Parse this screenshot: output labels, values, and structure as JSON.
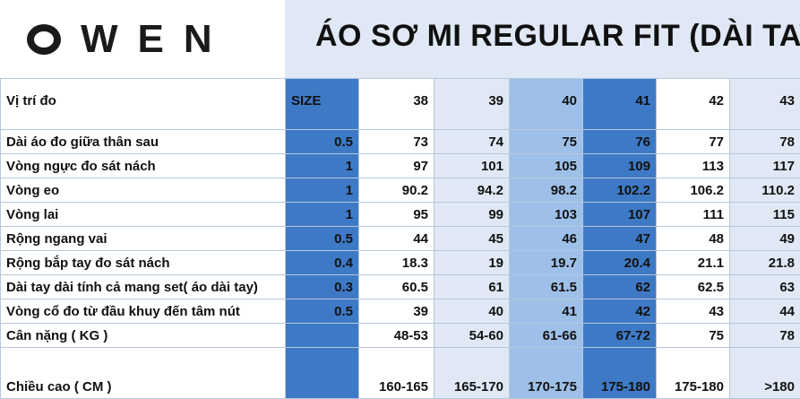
{
  "brand": "OWEN",
  "brand_rest": "WEN",
  "title": "ÁO SƠ MI REGULAR FIT (DÀI TAY)",
  "header_row": {
    "label": "Vị trí đo",
    "size_label": "SIZE",
    "sizes": [
      "38",
      "39",
      "40",
      "41",
      "42",
      "43"
    ]
  },
  "rows": [
    {
      "label": "Dài áo đo giữa thân sau",
      "tol": "0.5",
      "values": [
        "73",
        "74",
        "75",
        "76",
        "77",
        "78"
      ]
    },
    {
      "label": "Vòng ngực đo sát nách",
      "tol": "1",
      "values": [
        "97",
        "101",
        "105",
        "109",
        "113",
        "117"
      ]
    },
    {
      "label": "Vòng eo",
      "tol": "1",
      "values": [
        "90.2",
        "94.2",
        "98.2",
        "102.2",
        "106.2",
        "110.2"
      ]
    },
    {
      "label": "Vòng lai",
      "tol": "1",
      "values": [
        "95",
        "99",
        "103",
        "107",
        "111",
        "115"
      ]
    },
    {
      "label": "Rộng ngang vai",
      "tol": "0.5",
      "values": [
        "44",
        "45",
        "46",
        "47",
        "48",
        "49"
      ]
    },
    {
      "label": "Rộng bắp tay đo sát nách",
      "tol": "0.4",
      "values": [
        "18.3",
        "19",
        "19.7",
        "20.4",
        "21.1",
        "21.8"
      ]
    },
    {
      "label": "Dài tay dài tính cả mang set( áo dài tay)",
      "tol": "0.3",
      "values": [
        "60.5",
        "61",
        "61.5",
        "62",
        "62.5",
        "63"
      ]
    },
    {
      "label": "Vòng cổ đo từ đầu khuy đến tâm nút",
      "tol": "0.5",
      "values": [
        "39",
        "40",
        "41",
        "42",
        "43",
        "44"
      ]
    },
    {
      "label": "Cân nặng ( KG )",
      "tol": "",
      "values": [
        "48-53",
        "54-60",
        "61-66",
        "67-72",
        "75",
        "78"
      ]
    },
    {
      "label": "Chiều cao ( CM )",
      "tol": "",
      "values": [
        "160-165",
        "165-170",
        "170-175",
        "175-180",
        "175-180",
        ">180"
      ]
    }
  ]
}
